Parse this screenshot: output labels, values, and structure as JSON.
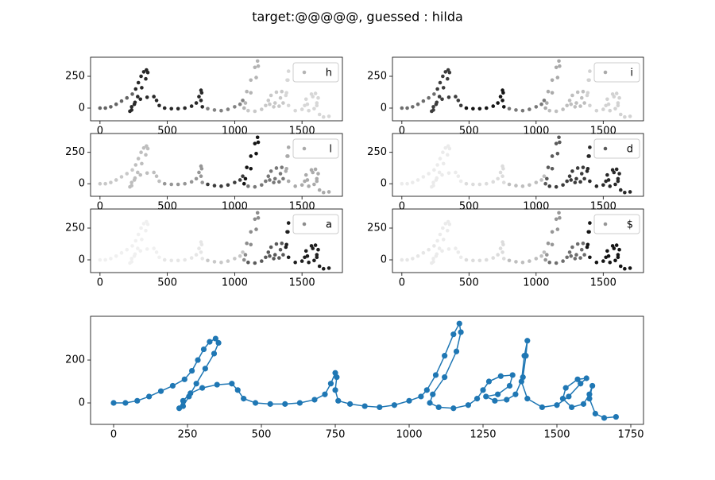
{
  "title": "target:@@@@@, guessed : hilda",
  "chart_data": [
    {
      "type": "scatter",
      "legend": "upper right",
      "xlim": [
        -70,
        1800
      ],
      "ylim": [
        -100,
        400
      ],
      "xticks": [
        0,
        500,
        1000,
        1500
      ],
      "yticks": [
        0,
        250
      ],
      "series": [
        {
          "name": "h",
          "shades": [
            100,
            100,
            100,
            100,
            100,
            100,
            100,
            40,
            40,
            40,
            40,
            40,
            40,
            40,
            40,
            40,
            40,
            40,
            40,
            40,
            40,
            40,
            40,
            40,
            40,
            40,
            40,
            40,
            40,
            40,
            40,
            40,
            40,
            40,
            40,
            40,
            40,
            130,
            130,
            130,
            130,
            130,
            130,
            130,
            180,
            180,
            180,
            180,
            180,
            180,
            180,
            180,
            180,
            200,
            200,
            200,
            200,
            200,
            200,
            200,
            200,
            200,
            200,
            200,
            200,
            200,
            200,
            215,
            215,
            215,
            215,
            215,
            215,
            215,
            215,
            215,
            215,
            215,
            215,
            215,
            215,
            215,
            215,
            215,
            215,
            215,
            215,
            215,
            215
          ]
        }
      ]
    },
    {
      "type": "scatter",
      "legend": "upper right",
      "xlim": [
        -70,
        1800
      ],
      "ylim": [
        -100,
        400
      ],
      "xticks": [
        0,
        500,
        1000,
        1500
      ],
      "yticks": [
        0,
        250
      ],
      "series": [
        {
          "name": "i",
          "shades": [
            110,
            110,
            110,
            110,
            110,
            110,
            110,
            60,
            60,
            60,
            60,
            60,
            60,
            60,
            60,
            60,
            60,
            60,
            60,
            60,
            60,
            60,
            60,
            60,
            60,
            60,
            20,
            20,
            20,
            20,
            20,
            20,
            20,
            20,
            20,
            20,
            20,
            120,
            120,
            120,
            120,
            120,
            120,
            120,
            170,
            170,
            170,
            170,
            170,
            170,
            170,
            170,
            170,
            190,
            190,
            190,
            190,
            190,
            190,
            190,
            190,
            190,
            190,
            190,
            190,
            190,
            190,
            210,
            210,
            210,
            210,
            210,
            210,
            210,
            210,
            210,
            210,
            210,
            210,
            210,
            210,
            210,
            210,
            210,
            210,
            210,
            210,
            210,
            210
          ]
        }
      ]
    },
    {
      "type": "scatter",
      "legend": "upper right",
      "xlim": [
        -70,
        1800
      ],
      "ylim": [
        -100,
        400
      ],
      "xticks": [
        0,
        500,
        1000,
        1500
      ],
      "yticks": [
        0,
        250
      ],
      "series": [
        {
          "name": "l",
          "shades": [
            200,
            200,
            200,
            200,
            200,
            200,
            200,
            190,
            190,
            190,
            190,
            190,
            190,
            190,
            190,
            190,
            190,
            190,
            190,
            190,
            190,
            190,
            190,
            190,
            190,
            190,
            150,
            150,
            150,
            150,
            150,
            150,
            150,
            150,
            150,
            150,
            150,
            60,
            60,
            60,
            60,
            60,
            60,
            60,
            20,
            20,
            20,
            20,
            20,
            20,
            20,
            20,
            20,
            120,
            120,
            120,
            120,
            120,
            120,
            120,
            120,
            120,
            120,
            120,
            120,
            120,
            120,
            170,
            170,
            170,
            170,
            170,
            170,
            170,
            170,
            170,
            170,
            170,
            170,
            170,
            170,
            170,
            170,
            170,
            170,
            170,
            170,
            170,
            170
          ]
        }
      ]
    },
    {
      "type": "scatter",
      "legend": "upper right",
      "xlim": [
        -70,
        1800
      ],
      "ylim": [
        -100,
        400
      ],
      "xticks": [
        0,
        500,
        1000,
        1500
      ],
      "yticks": [
        0,
        250
      ],
      "series": [
        {
          "name": "d",
          "shades": [
            235,
            235,
            235,
            235,
            235,
            235,
            235,
            235,
            235,
            235,
            235,
            235,
            235,
            235,
            235,
            235,
            235,
            235,
            235,
            235,
            235,
            235,
            235,
            235,
            235,
            235,
            220,
            220,
            220,
            220,
            220,
            220,
            220,
            220,
            220,
            220,
            220,
            190,
            190,
            190,
            190,
            190,
            190,
            190,
            90,
            90,
            90,
            90,
            90,
            90,
            90,
            90,
            90,
            60,
            60,
            60,
            60,
            60,
            60,
            60,
            60,
            60,
            60,
            60,
            60,
            60,
            60,
            40,
            40,
            40,
            40,
            40,
            40,
            40,
            40,
            40,
            40,
            40,
            40,
            40,
            40,
            40,
            40,
            40,
            40,
            40,
            40,
            40,
            40
          ]
        }
      ]
    },
    {
      "type": "scatter",
      "legend": "upper right",
      "xlim": [
        -70,
        1800
      ],
      "ylim": [
        -100,
        400
      ],
      "xticks": [
        0,
        500,
        1000,
        1500
      ],
      "yticks": [
        0,
        250
      ],
      "series": [
        {
          "name": "a",
          "shades": [
            240,
            240,
            240,
            240,
            240,
            240,
            240,
            240,
            240,
            240,
            240,
            240,
            240,
            240,
            240,
            240,
            240,
            240,
            240,
            240,
            240,
            240,
            240,
            240,
            240,
            240,
            230,
            230,
            230,
            230,
            230,
            230,
            230,
            230,
            230,
            230,
            230,
            200,
            200,
            200,
            200,
            200,
            200,
            200,
            140,
            140,
            140,
            140,
            140,
            140,
            140,
            140,
            140,
            90,
            90,
            90,
            90,
            90,
            90,
            90,
            90,
            90,
            90,
            90,
            90,
            90,
            90,
            30,
            30,
            30,
            30,
            30,
            30,
            30,
            30,
            30,
            30,
            30,
            30,
            30,
            30,
            30,
            30,
            30,
            30,
            30,
            30,
            30,
            30
          ]
        }
      ]
    },
    {
      "type": "scatter",
      "legend": "upper right",
      "xlim": [
        -70,
        1800
      ],
      "ylim": [
        -100,
        400
      ],
      "xticks": [
        0,
        500,
        1000,
        1500
      ],
      "yticks": [
        0,
        250
      ],
      "series": [
        {
          "name": "$",
          "shades": [
            230,
            230,
            230,
            230,
            230,
            230,
            230,
            235,
            235,
            235,
            235,
            235,
            235,
            235,
            235,
            235,
            235,
            235,
            235,
            235,
            235,
            235,
            235,
            235,
            235,
            235,
            220,
            220,
            220,
            220,
            220,
            220,
            220,
            220,
            220,
            220,
            220,
            190,
            190,
            190,
            190,
            190,
            190,
            190,
            150,
            150,
            150,
            150,
            150,
            150,
            150,
            150,
            150,
            110,
            110,
            110,
            110,
            110,
            110,
            110,
            110,
            110,
            110,
            110,
            110,
            110,
            110,
            20,
            20,
            20,
            20,
            20,
            20,
            20,
            20,
            20,
            20,
            20,
            20,
            20,
            20,
            20,
            20,
            20,
            20,
            20,
            20,
            20,
            20
          ]
        }
      ]
    },
    {
      "type": "line",
      "xlim": [
        -78,
        1793
      ],
      "ylim": [
        -100,
        404
      ],
      "xticks": [
        0,
        250,
        500,
        750,
        1000,
        1250,
        1500,
        1750
      ],
      "yticks": [
        0,
        200
      ],
      "series": [
        {
          "color": "#1f77b4",
          "x": [
            0,
            40,
            80,
            120,
            160,
            200,
            240,
            265,
            285,
            305,
            325,
            345,
            355,
            340,
            310,
            280,
            255,
            235,
            222,
            235,
            260,
            300,
            350,
            400,
            420,
            440,
            480,
            530,
            580,
            630,
            680,
            715,
            735,
            750,
            755,
            750,
            760,
            800,
            850,
            900,
            950,
            1000,
            1040,
            1060,
            1090,
            1120,
            1150,
            1170,
            1175,
            1160,
            1120,
            1080,
            1070,
            1100,
            1150,
            1200,
            1230,
            1250,
            1270,
            1310,
            1350,
            1340,
            1300,
            1260,
            1290,
            1330,
            1360,
            1385,
            1395,
            1400,
            1390,
            1380,
            1400,
            1450,
            1500,
            1540,
            1580,
            1600,
            1570,
            1530,
            1520,
            1550,
            1590,
            1610,
            1620,
            1610,
            1630,
            1660,
            1700
          ],
          "y": [
            0,
            0,
            10,
            30,
            55,
            80,
            110,
            150,
            200,
            250,
            285,
            300,
            280,
            230,
            160,
            90,
            30,
            -15,
            -25,
            10,
            45,
            70,
            85,
            90,
            60,
            20,
            0,
            -5,
            -5,
            0,
            15,
            40,
            90,
            140,
            120,
            60,
            10,
            -5,
            -15,
            -20,
            -10,
            10,
            30,
            60,
            130,
            220,
            320,
            370,
            330,
            240,
            120,
            40,
            0,
            -20,
            -25,
            -10,
            20,
            60,
            100,
            125,
            130,
            80,
            40,
            30,
            10,
            15,
            40,
            120,
            220,
            290,
            220,
            100,
            20,
            -20,
            -10,
            30,
            90,
            115,
            110,
            70,
            20,
            -20,
            -5,
            40,
            80,
            20,
            -50,
            -70,
            -65
          ]
        }
      ]
    }
  ]
}
